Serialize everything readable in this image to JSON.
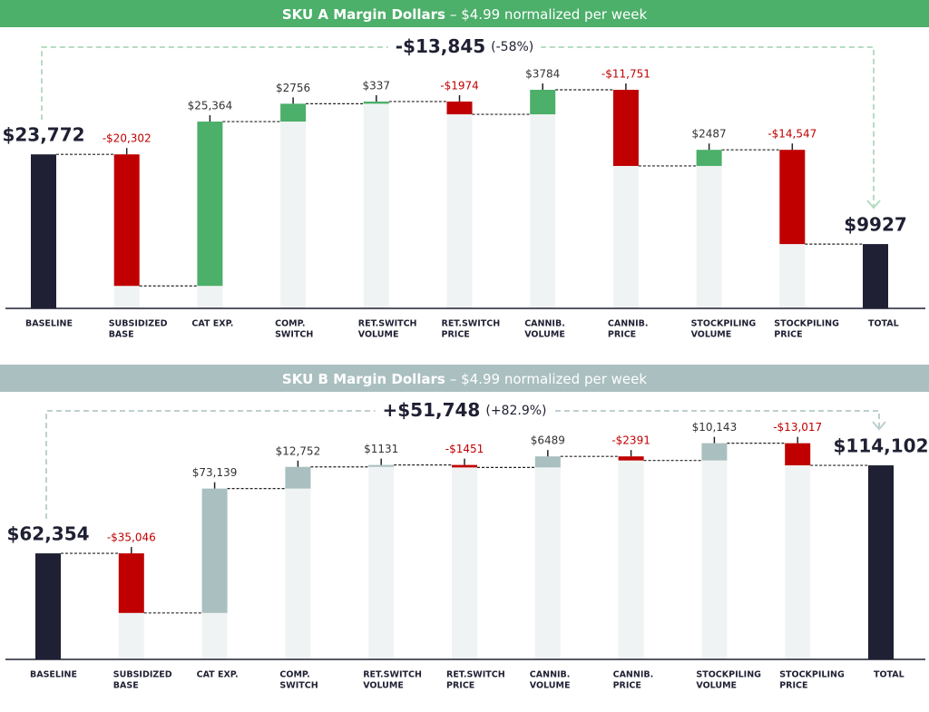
{
  "chart_data": [
    {
      "type": "waterfall",
      "title": "SKU A Margin Dollars",
      "subtitle": "– $4.99 normalized per week",
      "annotation": {
        "value_label": "-$13,845",
        "percent_label": "(-58%)"
      },
      "categories": [
        [
          "BASELINE"
        ],
        [
          "SUBSIDIZED",
          "BASE"
        ],
        [
          "CAT EXP."
        ],
        [
          "COMP.",
          "SWITCH"
        ],
        [
          "RET.SWITCH",
          "VOLUME"
        ],
        [
          "RET.SWITCH",
          "PRICE"
        ],
        [
          "CANNIB.",
          "VOLUME"
        ],
        [
          "CANNIB.",
          "PRICE"
        ],
        [
          "STOCKPILING",
          "VOLUME"
        ],
        [
          "STOCKPILING",
          "PRICE"
        ],
        [
          "TOTAL"
        ]
      ],
      "measure": [
        "absolute",
        "relative",
        "relative",
        "relative",
        "relative",
        "relative",
        "relative",
        "relative",
        "relative",
        "relative",
        "total"
      ],
      "values": [
        23772,
        -20302,
        25364,
        2756,
        337,
        -1974,
        3784,
        -11751,
        2487,
        -14547,
        9927
      ],
      "value_labels": [
        "$23,772",
        "-$20,302",
        "$25,364",
        "$2756",
        "$337",
        "-$1974",
        "$3784",
        "-$11,751",
        "$2487",
        "-$14,547",
        "$9927"
      ],
      "colors": {
        "increase": "#4caf6a",
        "decrease": "#c00000",
        "total": "#1f2033",
        "header": "#4caf6a",
        "connector": "#b7dcc2"
      },
      "ylim": [
        0,
        42000
      ]
    },
    {
      "type": "waterfall",
      "title": "SKU B Margin Dollars",
      "subtitle": "– $4.99 normalized per week",
      "annotation": {
        "value_label": "+$51,748",
        "percent_label": "(+82.9%)"
      },
      "categories": [
        [
          "BASELINE"
        ],
        [
          "SUBSIDIZED",
          "BASE"
        ],
        [
          "CAT EXP."
        ],
        [
          "COMP.",
          "SWITCH"
        ],
        [
          "RET.SWITCH",
          "VOLUME"
        ],
        [
          "RET.SWITCH",
          "PRICE"
        ],
        [
          "CANNIB.",
          "VOLUME"
        ],
        [
          "CANNIB.",
          "PRICE"
        ],
        [
          "STOCKPILING",
          "VOLUME"
        ],
        [
          "STOCKPILING",
          "PRICE"
        ],
        [
          "TOTAL"
        ]
      ],
      "measure": [
        "absolute",
        "relative",
        "relative",
        "relative",
        "relative",
        "relative",
        "relative",
        "relative",
        "relative",
        "relative",
        "total"
      ],
      "values": [
        62354,
        -35046,
        73139,
        12752,
        1131,
        -1451,
        6489,
        -2391,
        10143,
        -13017,
        114102
      ],
      "value_labels": [
        "$62,354",
        "-$35,046",
        "$73,139",
        "$12,752",
        "$1131",
        "-$1451",
        "$6489",
        "-$2391",
        "$10,143",
        "-$13,017",
        "$114,102"
      ],
      "colors": {
        "increase": "#aabfbf",
        "decrease": "#c00000",
        "total": "#1f2033",
        "header": "#aabfbf",
        "connector": "#bfcfcf"
      },
      "ylim": [
        0,
        160000
      ]
    }
  ]
}
